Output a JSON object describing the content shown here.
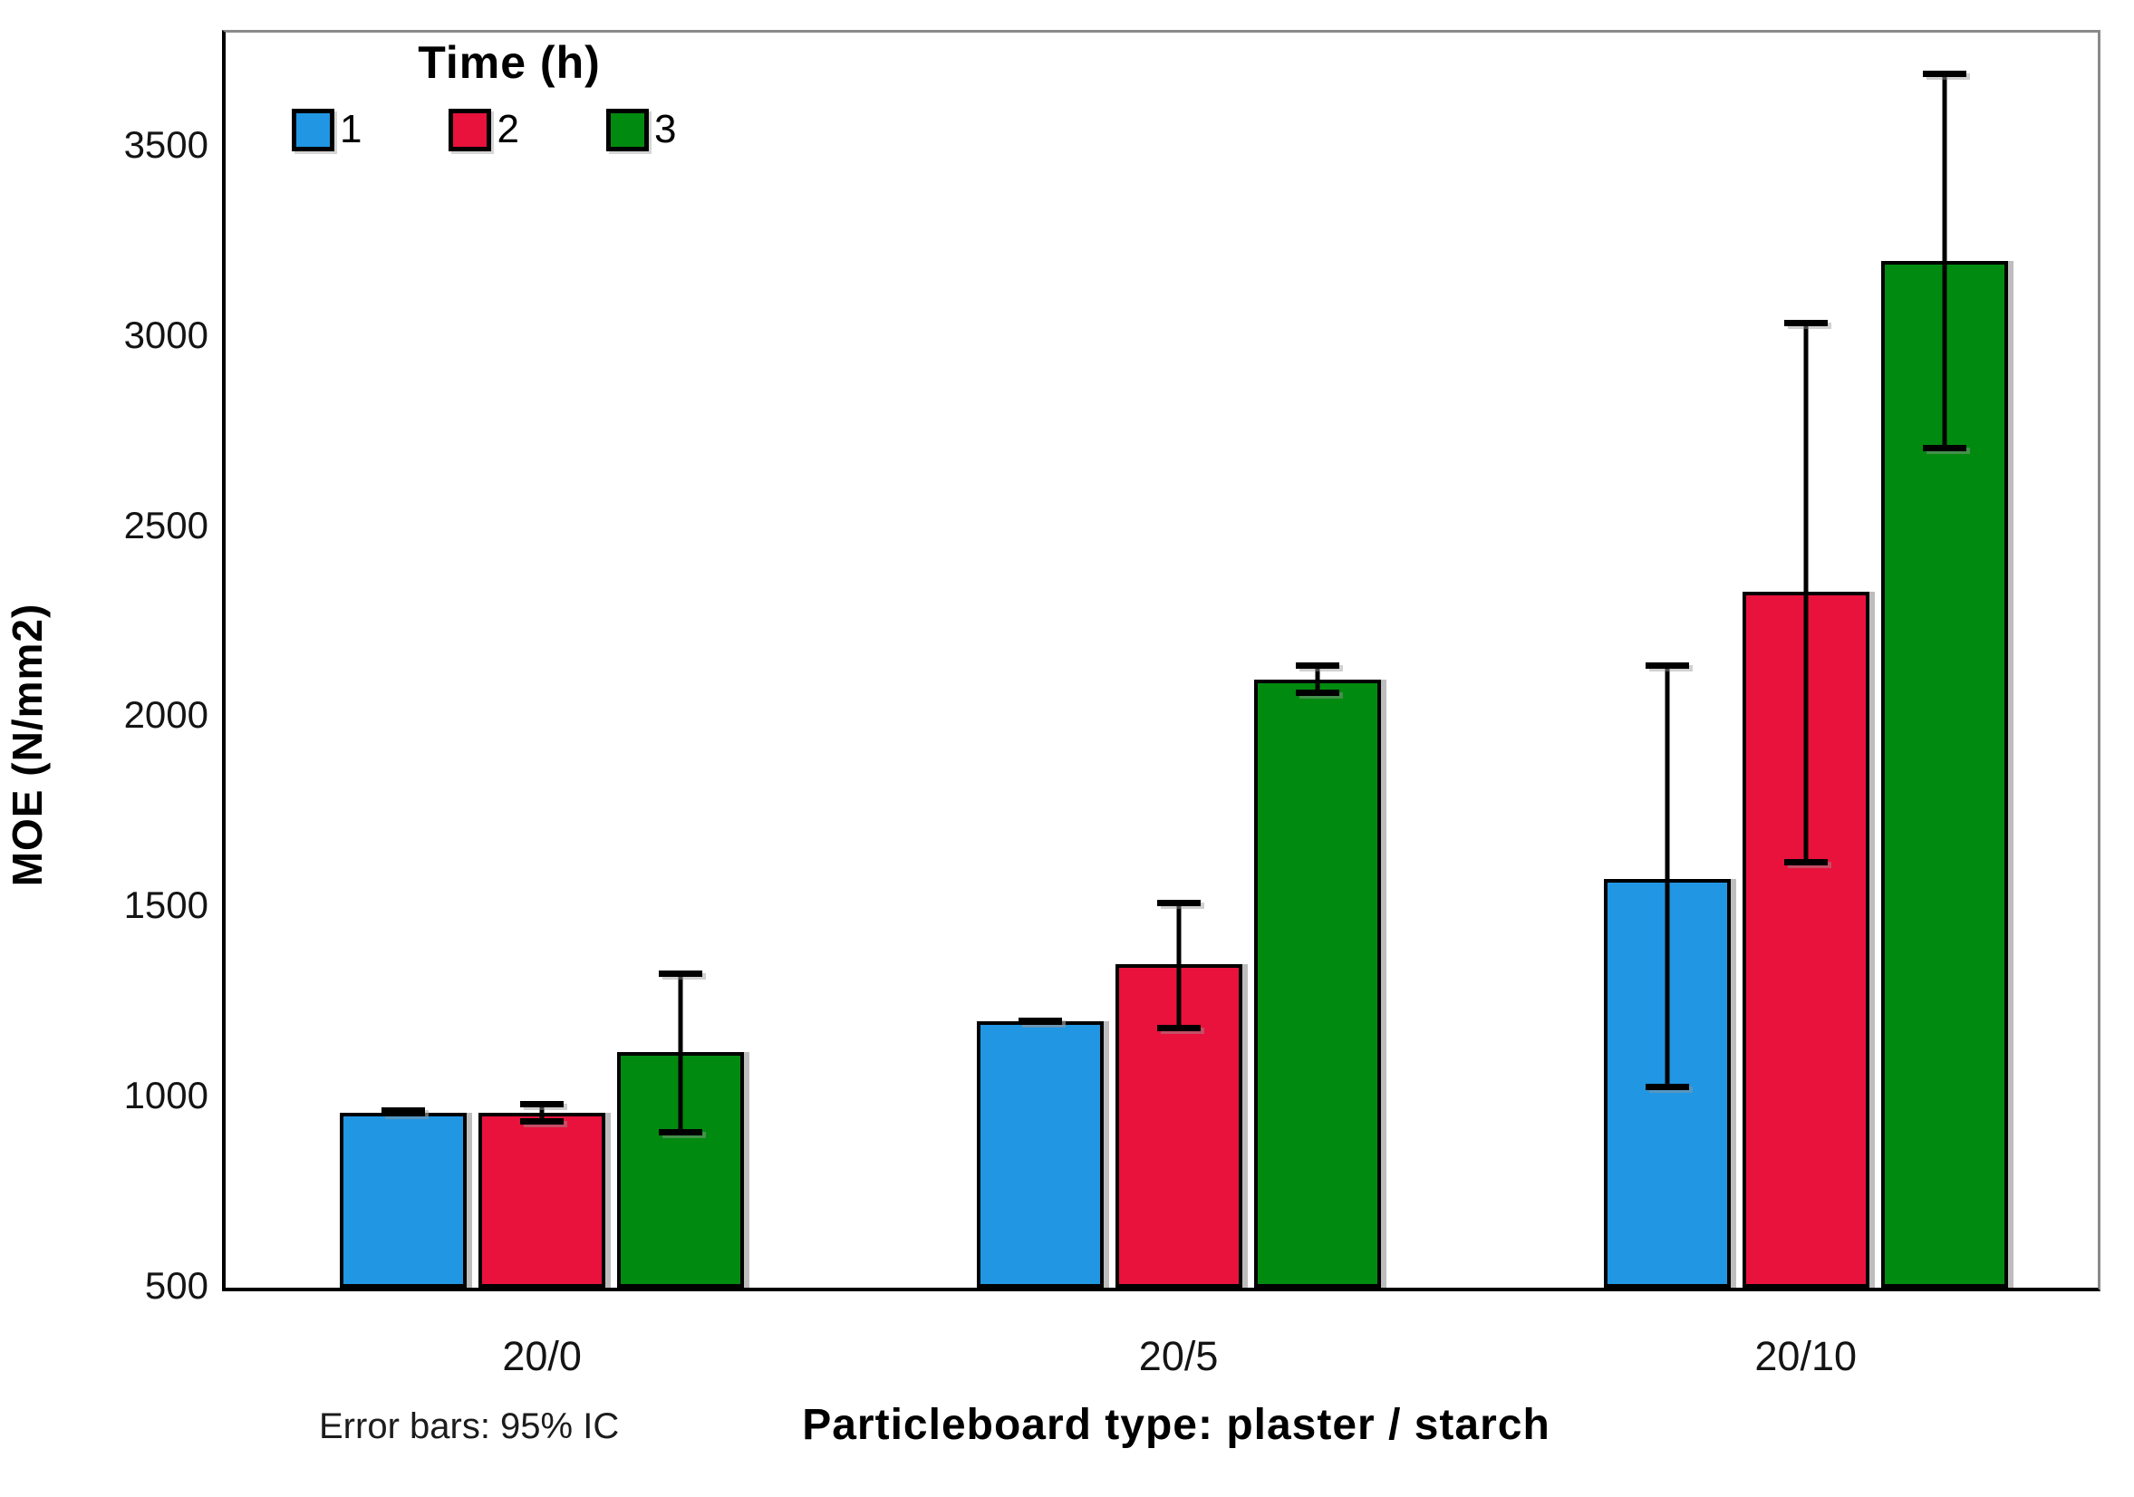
{
  "chart_data": {
    "type": "bar",
    "title": "",
    "categories": [
      "20/0",
      "20/5",
      "20/10"
    ],
    "series": [
      {
        "name": "1",
        "color": "#2196E3",
        "values": [
          960,
          1200,
          1575
        ],
        "ci_low": [
          950,
          1190,
          1020
        ],
        "ci_high": [
          975,
          1210,
          2145
        ]
      },
      {
        "name": "2",
        "color": "#E8123C",
        "values": [
          960,
          1350,
          2330
        ],
        "ci_low": [
          930,
          1175,
          1610
        ],
        "ci_high": [
          990,
          1520,
          3045
        ]
      },
      {
        "name": "3",
        "color": "#018A10",
        "values": [
          1120,
          2100,
          3200
        ],
        "ci_low": [
          900,
          2055,
          2700
        ],
        "ci_high": [
          1335,
          2145,
          3700
        ]
      }
    ],
    "ylabel": "MOE (N/mm2)",
    "xlabel": "Particleboard type: plaster / starch",
    "legend_title": "Time (h)",
    "footnote": "Error bars: 95% IC",
    "ylim": [
      500,
      3800
    ],
    "yticks": [
      500,
      1000,
      1500,
      2000,
      2500,
      3000,
      3500
    ],
    "grid": false,
    "legend_position": "top-left",
    "error_bars": "95% CI"
  }
}
